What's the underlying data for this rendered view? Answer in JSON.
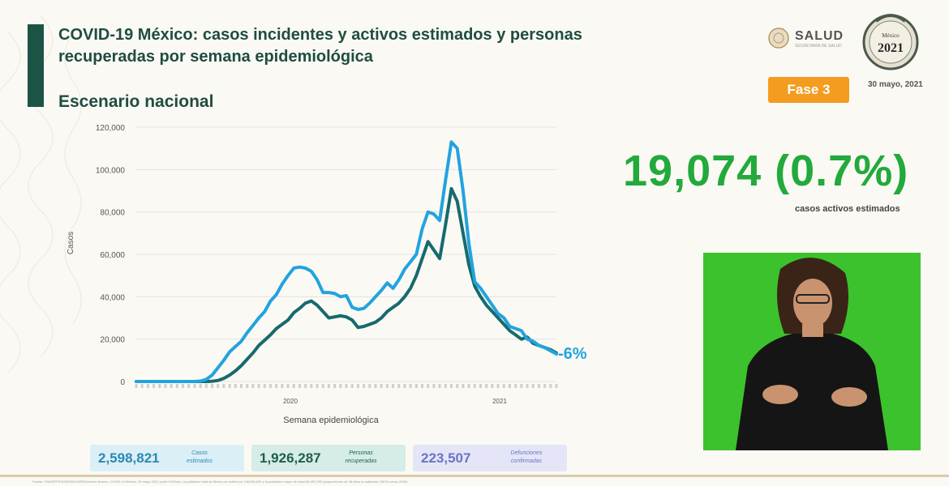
{
  "header": {
    "title": "COVID-19 México: casos incidentes y activos estimados y personas recuperadas por semana epidemiológica",
    "subtitle": "Escenario nacional"
  },
  "logos": {
    "salud_label": "SALUD",
    "salud_sub": "SECRETARÍA DE SALUD",
    "seal_title": "México",
    "seal_year": "2021"
  },
  "badge": {
    "phase": "Fase 3"
  },
  "date": "30 mayo, 2021",
  "active_cases": {
    "value": "19,074 (0.7%)",
    "caption": "casos activos estimados"
  },
  "chart_change_label": "-6%",
  "stats": [
    {
      "value": "2,598,821",
      "label": "Casos estimados",
      "bg": "#dbeff6",
      "num_color": "#2b88b5",
      "lbl_color": "#2b88b5"
    },
    {
      "value": "1,926,287",
      "label": "Personas recuperadas",
      "bg": "#d6ece6",
      "num_color": "#1f5e4e",
      "lbl_color": "#1f5e4e"
    },
    {
      "value": "223,507",
      "label": "Defunciones confirmadas",
      "bg": "#e4e6f7",
      "num_color": "#6c74c4",
      "lbl_color": "#6c74c4"
    }
  ],
  "footer_note": "Fuente: SSA/SPPS/DGE/DIE/InDRE/Informe técnico. COVID-19 México, 30 mayo 2021 (corte 9:00hrs). La población total de México se estimó en 128,054,834 y la población mayor de edad 95,457,000 (proyecciones de 18 años en adelante, INEGI censo 2020).",
  "colors": {
    "estimated": "#22a3df",
    "active": "#176a6e",
    "title": "#1f4d41",
    "accent_green": "#23a93c",
    "phase_orange": "#f39c1f"
  },
  "chart_data": {
    "type": "line",
    "title": "",
    "xlabel": "Semana epidemiológica",
    "ylabel": "Casos",
    "x_tick_labels": [
      "2020",
      "2021"
    ],
    "y_ticks": [
      "0",
      "20,000",
      "40,000",
      "60,000",
      "80,000",
      "100,000",
      "120,000"
    ],
    "ylim": [
      0,
      120000
    ],
    "grid": true,
    "series": [
      {
        "color": "#22a3df",
        "values": [
          0,
          0,
          0,
          0,
          0,
          0,
          0,
          0,
          0,
          0,
          0,
          200,
          1000,
          3000,
          6500,
          10000,
          14000,
          16500,
          19000,
          23000,
          26500,
          30000,
          33000,
          38000,
          41000,
          46000,
          50000,
          53500,
          54000,
          53500,
          52000,
          48000,
          42000,
          42000,
          41500,
          40000,
          40500,
          35000,
          34000,
          34500,
          37000,
          40000,
          43000,
          46500,
          44000,
          48000,
          53000,
          56500,
          60000,
          72000,
          80000,
          79000,
          76000,
          95000,
          113000,
          110000,
          90000,
          65000,
          47000,
          44000,
          40000,
          36000,
          32000,
          30000,
          26000,
          25000,
          24000,
          20000,
          19000,
          17000,
          16000,
          14500,
          13000
        ]
      },
      {
        "color": "#176a6e",
        "values": [
          0,
          0,
          0,
          0,
          0,
          0,
          0,
          0,
          0,
          0,
          0,
          0,
          0,
          100,
          500,
          1500,
          3000,
          5000,
          7500,
          10500,
          13500,
          17000,
          19500,
          22000,
          25000,
          27000,
          29000,
          32500,
          34500,
          37000,
          38000,
          36000,
          33000,
          30000,
          30500,
          31000,
          30500,
          29000,
          25500,
          26000,
          27000,
          28000,
          30000,
          33000,
          35000,
          37000,
          40000,
          44000,
          50000,
          58000,
          66000,
          62000,
          58000,
          74000,
          91000,
          85000,
          70000,
          55000,
          45000,
          40000,
          36000,
          33000,
          30000,
          27000,
          24000,
          22000,
          20000,
          21000,
          18000,
          17000,
          16000,
          15000,
          13500
        ]
      }
    ]
  }
}
